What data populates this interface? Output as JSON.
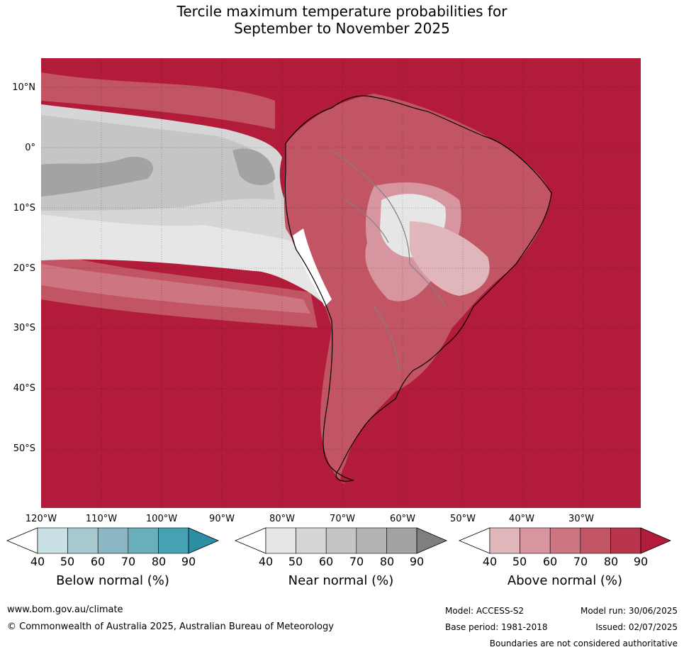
{
  "title": {
    "line1": "Tercile maximum temperature probabilities for",
    "line2": "September to November 2025"
  },
  "map": {
    "lat_labels": [
      "10°N",
      "0°",
      "10°S",
      "20°S",
      "30°S",
      "40°S",
      "50°S"
    ],
    "lon_labels": [
      "120°W",
      "110°W",
      "100°W",
      "90°W",
      "80°W",
      "70°W",
      "60°W",
      "50°W",
      "40°W",
      "30°W"
    ],
    "colors": {
      "ocean_above_90": "#b31b3b",
      "land_outline": "#000000",
      "border_outline": "#808080"
    }
  },
  "colorbars": [
    {
      "title": "Below normal (%)",
      "ticks": [
        "40",
        "50",
        "60",
        "70",
        "80",
        "90"
      ],
      "colors": [
        "#ffffff",
        "#c8e0e6",
        "#a7c8cf",
        "#8ab7c3",
        "#6aaebc",
        "#46a2b3",
        "#2b8ea3"
      ]
    },
    {
      "title": "Near normal (%)",
      "ticks": [
        "40",
        "50",
        "60",
        "70",
        "80",
        "90"
      ],
      "colors": [
        "#ffffff",
        "#e6e6e6",
        "#d6d6d6",
        "#c5c5c5",
        "#b3b3b3",
        "#a3a3a3",
        "#7f7f7f"
      ]
    },
    {
      "title": "Above normal (%)",
      "ticks": [
        "40",
        "50",
        "60",
        "70",
        "80",
        "90"
      ],
      "colors": [
        "#ffffff",
        "#e0b6bb",
        "#d7969f",
        "#cd7581",
        "#c25564",
        "#b9354c",
        "#b31b3b"
      ]
    }
  ],
  "footer": {
    "website": "www.bom.gov.au/climate",
    "copyright": "© Commonwealth of Australia 2025, Australian Bureau of Meteorology",
    "model": "Model: ACCESS-S2",
    "base_period": "Base period: 1981-2018",
    "model_run": "Model run: 30/06/2025",
    "issued": "Issued: 02/07/2025",
    "disclaimer": "Boundaries are not considered authoritative"
  }
}
